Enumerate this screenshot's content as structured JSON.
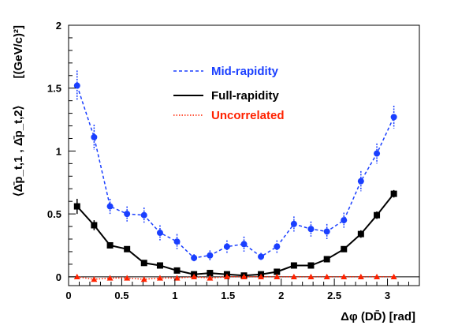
{
  "chart_data": {
    "type": "scatter",
    "xlabel": "Δφ (DD̄) [rad]",
    "ylabel_lhs": "⟨Δ̄p_t,1 , Δ̄p_t,2⟩",
    "ylabel_units": "[(GeV/c)²]",
    "xlim": [
      0,
      3.3
    ],
    "ylim": [
      -0.07,
      2.0
    ],
    "xticks": [
      "0",
      "0.5",
      "1",
      "1.5",
      "2",
      "2.5",
      "3"
    ],
    "yticks": [
      "0",
      "0.5",
      "1",
      "1.5",
      "2"
    ],
    "grid": false,
    "legend_position": "top-center",
    "series": [
      {
        "name": "Mid-rapidity",
        "color": "#1a3fff",
        "line": "dashed",
        "marker": "circle",
        "x": [
          0.08,
          0.24,
          0.39,
          0.55,
          0.71,
          0.86,
          1.02,
          1.18,
          1.33,
          1.49,
          1.65,
          1.81,
          1.96,
          2.12,
          2.28,
          2.43,
          2.59,
          2.75,
          2.9,
          3.06
        ],
        "y": [
          1.52,
          1.11,
          0.56,
          0.5,
          0.49,
          0.35,
          0.28,
          0.15,
          0.17,
          0.24,
          0.26,
          0.16,
          0.24,
          0.42,
          0.38,
          0.36,
          0.45,
          0.76,
          0.98,
          1.27
        ],
        "err": [
          0.12,
          0.1,
          0.06,
          0.06,
          0.06,
          0.06,
          0.06,
          0.03,
          0.04,
          0.05,
          0.06,
          0.03,
          0.05,
          0.06,
          0.06,
          0.06,
          0.06,
          0.08,
          0.08,
          0.09
        ]
      },
      {
        "name": "Full-rapidity",
        "color": "#000000",
        "line": "solid",
        "marker": "square",
        "x": [
          0.08,
          0.24,
          0.39,
          0.55,
          0.71,
          0.86,
          1.02,
          1.18,
          1.33,
          1.49,
          1.65,
          1.81,
          1.96,
          2.12,
          2.28,
          2.43,
          2.59,
          2.75,
          2.9,
          3.06
        ],
        "y": [
          0.56,
          0.41,
          0.25,
          0.22,
          0.11,
          0.09,
          0.05,
          0.02,
          0.03,
          0.02,
          0.01,
          0.02,
          0.04,
          0.09,
          0.09,
          0.14,
          0.22,
          0.34,
          0.49,
          0.66
        ],
        "err": [
          0.06,
          0.04,
          0.02,
          0.02,
          0.015,
          0.015,
          0.015,
          0.015,
          0.015,
          0.015,
          0.015,
          0.015,
          0.015,
          0.015,
          0.015,
          0.015,
          0.02,
          0.03,
          0.03,
          0.03
        ]
      },
      {
        "name": "Uncorrelated",
        "color": "#ff2200",
        "line": "dotted",
        "marker": "triangle",
        "x": [
          0.08,
          0.24,
          0.39,
          0.55,
          0.71,
          0.86,
          1.02,
          1.18,
          1.33,
          1.49,
          1.65,
          1.81,
          1.96,
          2.12,
          2.28,
          2.43,
          2.59,
          2.75,
          2.9,
          3.06
        ],
        "y": [
          0.0,
          -0.02,
          -0.01,
          -0.01,
          -0.02,
          -0.01,
          -0.01,
          0.0,
          -0.01,
          0.0,
          0.0,
          0.0,
          0.0,
          0.0,
          0.0,
          0.0,
          0.0,
          0.0,
          0.0,
          0.0
        ],
        "err": [
          0.01,
          0.01,
          0.01,
          0.01,
          0.01,
          0.01,
          0.01,
          0.01,
          0.01,
          0.01,
          0.01,
          0.01,
          0.01,
          0.01,
          0.01,
          0.01,
          0.01,
          0.01,
          0.01,
          0.01
        ]
      }
    ]
  }
}
